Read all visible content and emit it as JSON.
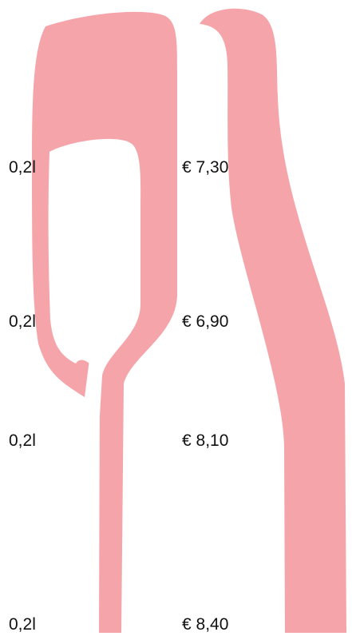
{
  "menu": {
    "rows": [
      {
        "volume": "0,2l",
        "price": "€ 7,30"
      },
      {
        "volume": "0,2l",
        "price": "€ 6,90"
      },
      {
        "volume": "0,2l",
        "price": "€ 8,10"
      },
      {
        "volume": "0,2l",
        "price": "€ 8,40"
      }
    ]
  }
}
